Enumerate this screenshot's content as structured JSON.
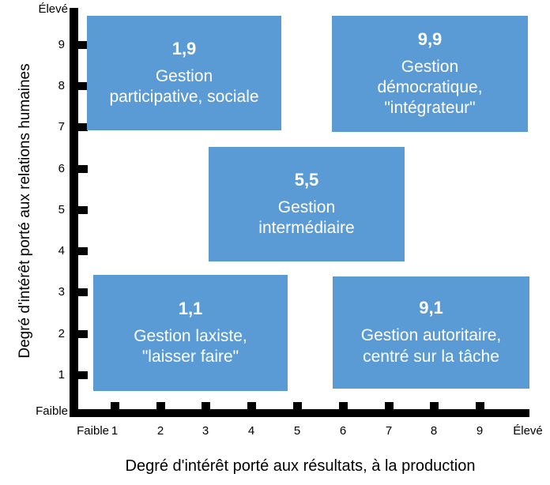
{
  "chart_data": {
    "type": "scatter",
    "title": "",
    "xlabel": "Degré d'intérêt porté aux résultats, à la production",
    "ylabel": "Degré d'intérêt porté aux relations humaines",
    "xlim": [
      0,
      10
    ],
    "ylim": [
      0,
      10
    ],
    "grid": false,
    "legend_position": "none",
    "x_ticks": [
      "1",
      "2",
      "3",
      "4",
      "5",
      "6",
      "7",
      "8",
      "9"
    ],
    "y_ticks": [
      "9",
      "8",
      "7",
      "6",
      "5",
      "4",
      "3",
      "2",
      "1"
    ],
    "axis_labels": {
      "y_high": "Élevé",
      "y_low": "Faible",
      "x_low": "Faible",
      "x_high": "Élevé"
    },
    "points": [
      {
        "x": 1,
        "y": 9,
        "code": "1,9",
        "label": "Gestion\nparticipative, sociale"
      },
      {
        "x": 9,
        "y": 9,
        "code": "9,9",
        "label": "Gestion\ndémocratique,\n\"intégrateur\""
      },
      {
        "x": 5,
        "y": 5,
        "code": "5,5",
        "label": "Gestion\nintermédiaire"
      },
      {
        "x": 1,
        "y": 1,
        "code": "1,1",
        "label": "Gestion laxiste,\n\"laisser faire\""
      },
      {
        "x": 9,
        "y": 1,
        "code": "9,1",
        "label": "Gestion autoritaire,\ncentré sur la tâche"
      }
    ],
    "colors": {
      "box_fill": "#5B9BD5",
      "box_text": "#FFFFFF",
      "axis": "#000000",
      "background": "#FFFFFF"
    }
  }
}
